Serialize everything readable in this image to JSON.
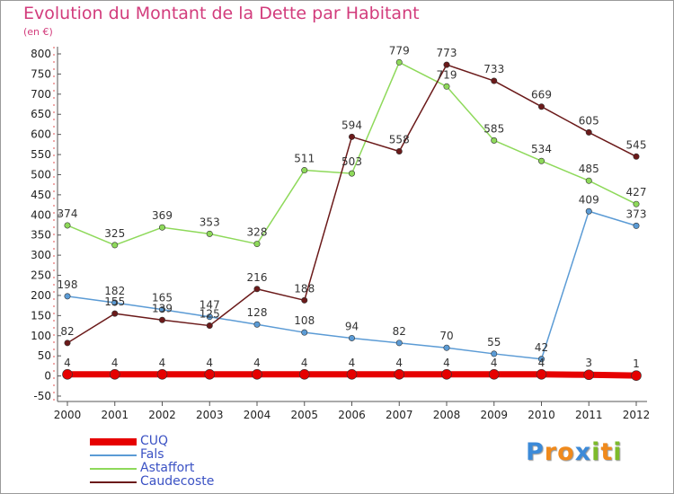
{
  "title": "Evolution du Montant de la Dette par Habitant",
  "subtitle": "(en €)",
  "logo": {
    "text": "Proxiti",
    "letters": [
      {
        "ch": "P",
        "color": "#3c8ad8"
      },
      {
        "ch": "r",
        "color": "#f08a1c"
      },
      {
        "ch": "o",
        "color": "#f08a1c"
      },
      {
        "ch": "x",
        "color": "#3c8ad8"
      },
      {
        "ch": "i",
        "color": "#7dbb2a"
      },
      {
        "ch": "t",
        "color": "#f08a1c"
      },
      {
        "ch": "i",
        "color": "#7dbb2a"
      }
    ]
  },
  "chart_data": {
    "type": "line",
    "title": "Evolution du Montant de la Dette par Habitant",
    "subtitle": "(en €)",
    "x": [
      "2000",
      "2001",
      "2002",
      "2003",
      "2004",
      "2005",
      "2006",
      "2007",
      "2008",
      "2009",
      "2010",
      "2011",
      "2012"
    ],
    "y_ticks": [
      -50,
      0,
      50,
      100,
      150,
      200,
      250,
      300,
      350,
      400,
      450,
      500,
      550,
      600,
      650,
      700,
      750,
      800
    ],
    "ylim": [
      -50,
      800
    ],
    "grid": false,
    "legend_position": "bottom-left",
    "series": [
      {
        "name": "CUQ",
        "color": "#e60000",
        "values": [
          4,
          4,
          4,
          4,
          4,
          4,
          4,
          4,
          4,
          4,
          4,
          3,
          1
        ]
      },
      {
        "name": "Fals",
        "color": "#5b9bd5",
        "values": [
          198,
          182,
          165,
          147,
          128,
          108,
          94,
          82,
          70,
          55,
          42,
          409,
          373
        ]
      },
      {
        "name": "Astaffort",
        "color": "#8ed95a",
        "values": [
          374,
          325,
          369,
          353,
          328,
          511,
          503,
          779,
          719,
          585,
          534,
          485,
          427
        ]
      },
      {
        "name": "Caudecoste",
        "color": "#6b1a1a",
        "values": [
          82,
          155,
          139,
          125,
          216,
          188,
          594,
          558,
          773,
          733,
          669,
          605,
          545
        ]
      }
    ]
  }
}
